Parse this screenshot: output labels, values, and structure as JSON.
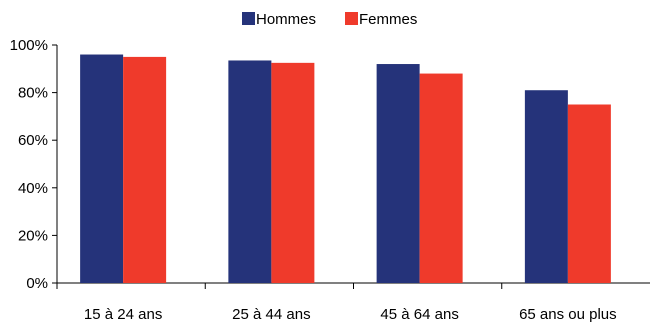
{
  "chart_data": {
    "type": "bar",
    "title": "",
    "xlabel": "",
    "ylabel": "",
    "categories": [
      "15 à 24 ans",
      "25 à 44 ans",
      "45 à 64 ans",
      "65 ans ou plus"
    ],
    "series": [
      {
        "name": "Hommes",
        "color": "#25337a",
        "values": [
          96,
          93.5,
          92,
          81
        ]
      },
      {
        "name": "Femmes",
        "color": "#ef3a2b",
        "values": [
          95,
          92.5,
          88,
          75
        ]
      }
    ],
    "ylim": [
      0,
      100
    ],
    "yticks": [
      0,
      20,
      40,
      60,
      80,
      100
    ],
    "ytick_labels": [
      "0%",
      "20%",
      "40%",
      "60%",
      "80%",
      "100%"
    ],
    "grid": false,
    "legend_position": "top-center"
  }
}
